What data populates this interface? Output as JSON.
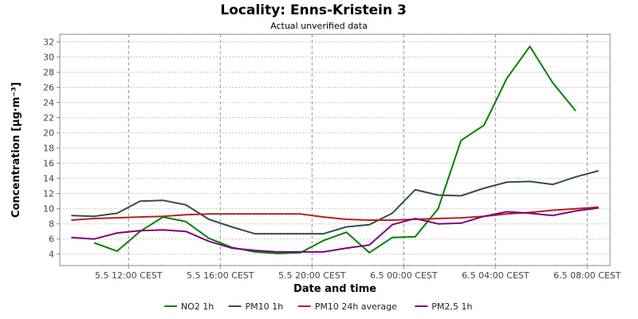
{
  "chart_data": {
    "type": "line",
    "title": "Locality: Enns-Kristein 3",
    "subtitle": "Actual unverified data",
    "xlabel": "Date and time",
    "ylabel": "Concentration [µg·m⁻³]",
    "ylim": [
      2.5,
      33
    ],
    "ytick_values": [
      4,
      6,
      8,
      10,
      12,
      14,
      16,
      18,
      20,
      22,
      24,
      26,
      28,
      30,
      32
    ],
    "xlim": [
      "2024-05-05 09:00",
      "2024-05-06 09:00"
    ],
    "x_ticks": [
      {
        "x": "2024-05-05 12:00",
        "label": "5.5 12:00 CEST"
      },
      {
        "x": "2024-05-05 16:00",
        "label": "5.5 16:00 CEST"
      },
      {
        "x": "2024-05-05 20:00",
        "label": "5.5 20:00 CEST"
      },
      {
        "x": "2024-05-06 00:00",
        "label": "6.5 00:00 CEST"
      },
      {
        "x": "2024-05-06 04:00",
        "label": "6.5 04:00 CEST"
      },
      {
        "x": "2024-05-06 08:00",
        "label": "6.5 08:00 CEST"
      }
    ],
    "x": [
      "2024-05-05 09:30",
      "2024-05-05 10:30",
      "2024-05-05 11:30",
      "2024-05-05 12:30",
      "2024-05-05 13:30",
      "2024-05-05 14:30",
      "2024-05-05 15:30",
      "2024-05-05 16:30",
      "2024-05-05 17:30",
      "2024-05-05 18:30",
      "2024-05-05 19:30",
      "2024-05-05 20:30",
      "2024-05-05 21:30",
      "2024-05-05 22:30",
      "2024-05-05 23:30",
      "2024-05-06 00:30",
      "2024-05-06 01:30",
      "2024-05-06 02:30",
      "2024-05-06 03:30",
      "2024-05-06 04:30",
      "2024-05-06 05:30",
      "2024-05-06 06:30",
      "2024-05-06 07:30",
      "2024-05-06 08:30"
    ],
    "grid": true,
    "legend_position": "bottom",
    "series": [
      {
        "name": "NO2 1h",
        "color": "#008000",
        "values": [
          null,
          5.5,
          4.4,
          7.0,
          8.9,
          8.3,
          6.1,
          4.9,
          4.3,
          4.1,
          4.2,
          5.8,
          6.9,
          4.2,
          6.2,
          6.3,
          10.0,
          19.0,
          21.0,
          27.2,
          31.4,
          26.6,
          22.9,
          null
        ]
      },
      {
        "name": "PM10 1h",
        "color": "#2f4f4f",
        "values": [
          9.1,
          9.0,
          9.4,
          11.0,
          11.1,
          10.5,
          8.6,
          7.6,
          6.7,
          6.7,
          6.7,
          6.7,
          7.6,
          7.9,
          9.4,
          12.5,
          11.8,
          11.7,
          12.7,
          13.5,
          13.6,
          13.2,
          14.2,
          15.0
        ]
      },
      {
        "name": "PM10 24h average",
        "color": "#b22222",
        "values": [
          8.5,
          8.7,
          8.8,
          8.9,
          9.0,
          9.2,
          9.3,
          9.3,
          9.3,
          9.3,
          9.3,
          8.9,
          8.6,
          8.5,
          8.5,
          8.6,
          8.7,
          8.8,
          9.0,
          9.3,
          9.5,
          9.8,
          10.0,
          10.2
        ]
      },
      {
        "name": "PM2,5 1h",
        "color": "#800080",
        "values": [
          6.2,
          6.0,
          6.8,
          7.1,
          7.2,
          7.0,
          5.7,
          4.8,
          4.5,
          4.3,
          4.3,
          4.3,
          4.8,
          5.2,
          7.9,
          8.7,
          8.0,
          8.1,
          9.0,
          9.6,
          9.4,
          9.1,
          9.7,
          10.1
        ]
      }
    ]
  }
}
